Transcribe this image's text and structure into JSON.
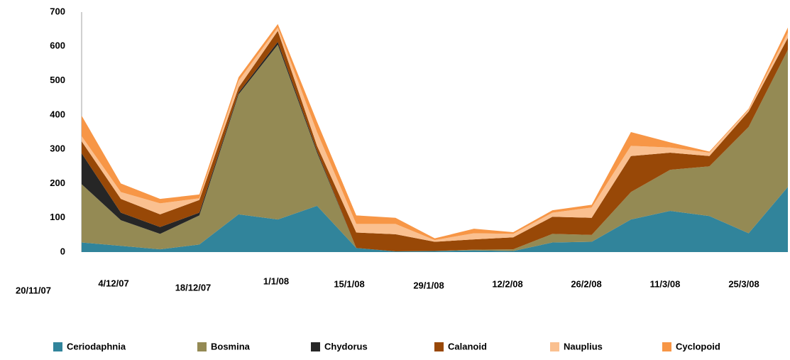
{
  "chart_data": {
    "type": "stacked-area",
    "categories": [
      null,
      null,
      null,
      null,
      null,
      null,
      null,
      null,
      null,
      null,
      null,
      null,
      null,
      null,
      null,
      null,
      null,
      null,
      null
    ],
    "x_labels": [
      "20/11/07",
      "4/12/07",
      "18/12/07",
      "1/1/08",
      "15/1/08",
      "29/1/08",
      "12/2/08",
      "26/2/08",
      "11/3/08",
      "25/3/08"
    ],
    "ylim": [
      0,
      700
    ],
    "yticks": [
      0,
      100,
      200,
      300,
      400,
      500,
      600,
      700
    ],
    "legend": "bottom",
    "series": [
      {
        "name": "Ceriodaphnia",
        "color": "#31849b",
        "values": [
          28,
          18,
          8,
          22,
          110,
          95,
          135,
          12,
          2,
          3,
          5,
          3,
          28,
          30,
          95,
          120,
          105,
          55,
          190
        ]
      },
      {
        "name": "Bosmina",
        "color": "#948a54",
        "values": [
          170,
          75,
          45,
          85,
          350,
          510,
          155,
          0,
          0,
          0,
          2,
          5,
          25,
          20,
          80,
          120,
          145,
          310,
          400
        ]
      },
      {
        "name": "Chydorus",
        "color": "#262626",
        "values": [
          90,
          22,
          20,
          8,
          5,
          8,
          5,
          0,
          0,
          0,
          0,
          0,
          0,
          0,
          0,
          0,
          0,
          0,
          0
        ]
      },
      {
        "name": "Calanoid",
        "color": "#984807",
        "values": [
          35,
          40,
          37,
          37,
          15,
          32,
          15,
          45,
          50,
          27,
          30,
          35,
          50,
          50,
          105,
          50,
          30,
          45,
          35
        ]
      },
      {
        "name": "Nauplius",
        "color": "#fac090",
        "values": [
          15,
          20,
          32,
          5,
          20,
          10,
          40,
          25,
          30,
          5,
          18,
          10,
          12,
          30,
          30,
          15,
          10,
          5,
          15
        ]
      },
      {
        "name": "Cyclopoid",
        "color": "#f79646",
        "values": [
          60,
          25,
          13,
          11,
          10,
          10,
          30,
          25,
          18,
          5,
          13,
          5,
          7,
          8,
          40,
          15,
          3,
          3,
          15
        ]
      }
    ]
  }
}
